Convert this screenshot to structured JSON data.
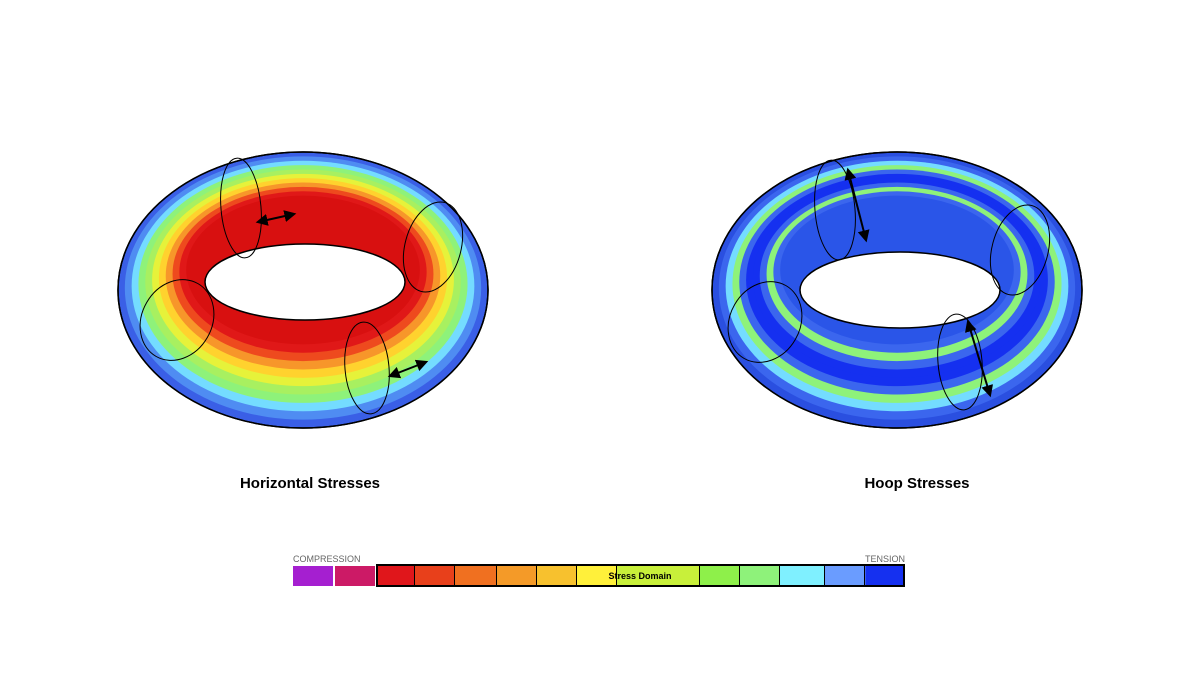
{
  "figures": [
    {
      "caption": "Horizontal Stresses"
    },
    {
      "caption": "Hoop Stresses"
    }
  ],
  "legend": {
    "left_label": "COMPRESSION",
    "right_label": "TENSION",
    "center_label": "Stress Domain"
  }
}
